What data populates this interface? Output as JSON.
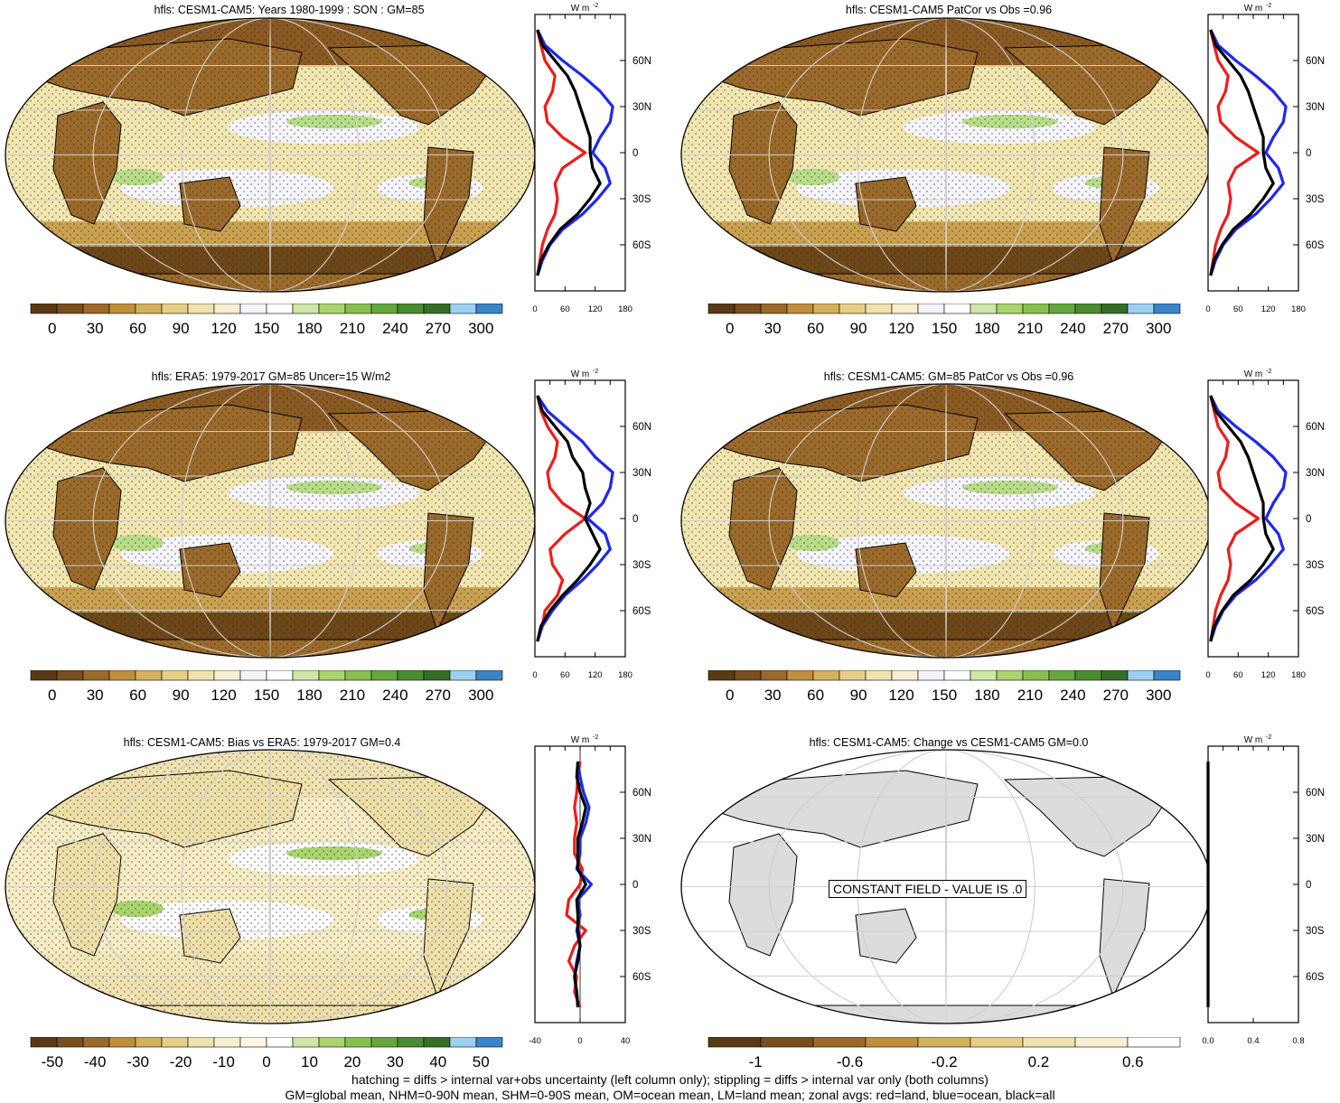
{
  "footer": {
    "line1": "hatching = diffs > internal var+obs uncertainty (left column only); stippling = diffs > internal var only (both columns)",
    "line2": "GM=global mean, NHM=0-90N mean, SHM=0-90S mean, OM=ocean mean, LM=land mean; zonal avgs: red=land, blue=ocean, black=all"
  },
  "zonal_unit": "W m",
  "zonal_unit_exp": "-2",
  "lat_ticks": [
    "60N",
    "30N",
    "0",
    "30S",
    "60S"
  ],
  "colors": {
    "land": "#ee1c1c",
    "ocean": "#1f28ee",
    "all": "#000000",
    "map_ocean_base": "#f2e6b0",
    "map_land_base": "#8a5a22",
    "grid": "#cfcfcf",
    "constant_land": "#dcdcdc"
  },
  "colorbars": {
    "abs": {
      "labels": [
        "0",
        "30",
        "60",
        "90",
        "120",
        "150",
        "180",
        "210",
        "240",
        "270",
        "300"
      ],
      "colors": [
        "#5a3a15",
        "#7a4e1e",
        "#9b6a2a",
        "#c08f3c",
        "#d4b15c",
        "#e6cf85",
        "#f0e2ad",
        "#f7efd0",
        "#f4f4fa",
        "#ffffff",
        "#cfe6a6",
        "#a9d46e",
        "#86c14f",
        "#64a83c",
        "#4a8c30",
        "#356f26",
        "#9cd0f0",
        "#3a85c8"
      ]
    },
    "bias": {
      "labels": [
        "-50",
        "-40",
        "-30",
        "-20",
        "-10",
        "0",
        "10",
        "20",
        "30",
        "40",
        "50"
      ],
      "colors": [
        "#5a3a15",
        "#7a4e1e",
        "#9b6a2a",
        "#c08f3c",
        "#d4b15c",
        "#e6cf85",
        "#f0e2ad",
        "#f7efd0",
        "#fbf7e4",
        "#ffffff",
        "#cfe6a6",
        "#a9d46e",
        "#86c14f",
        "#64a83c",
        "#4a8c30",
        "#356f26",
        "#9cd0f0",
        "#3a85c8"
      ]
    },
    "change": {
      "labels": [
        "-1",
        "-0.6",
        "-0.2",
        "0.2",
        "0.6"
      ],
      "colors": [
        "#5a3a15",
        "#7a4e1e",
        "#9b6a2a",
        "#c08f3c",
        "#d4b15c",
        "#e6cf85",
        "#f0e2ad",
        "#f7efd0",
        "#ffffff"
      ]
    }
  },
  "panels": [
    {
      "title": "hfls: CESM1-CAM5: Years 1980-1999 : SON : GM=85",
      "zonal_xticks": [
        "0",
        "60",
        "120",
        "180"
      ],
      "colorbar": "abs"
    },
    {
      "title": "hfls: CESM1-CAM5 PatCor vs Obs =0.96",
      "zonal_xticks": [
        "0",
        "60",
        "120",
        "180"
      ],
      "colorbar": "abs"
    },
    {
      "title": "hfls: ERA5: 1979-2017 GM=85 Uncer=15 W/m2",
      "zonal_xticks": [
        "0",
        "60",
        "120",
        "180"
      ],
      "colorbar": "abs"
    },
    {
      "title": "hfls: CESM1-CAM5: GM=85 PatCor vs Obs =0.96",
      "zonal_xticks": [
        "0",
        "60",
        "120",
        "180"
      ],
      "colorbar": "abs"
    },
    {
      "title": "hfls: CESM1-CAM5: Bias vs ERA5: 1979-2017  GM=0.4",
      "zonal_xticks": [
        "-40",
        "0",
        "40"
      ],
      "colorbar": "bias"
    },
    {
      "title": "hfls: CESM1-CAM5: Change vs CESM1-CAM5 GM=0.0",
      "zonal_xticks": [
        "0.0",
        "0.4",
        "0.8"
      ],
      "colorbar": "change",
      "constant_label": "CONSTANT FIELD - VALUE IS .0"
    }
  ],
  "chart_data": [
    {
      "type": "line",
      "title": "hfls: CESM1-CAM5: Years 1980-1999 : SON : GM=85",
      "x_axis": "latitude",
      "xlim": [
        -90,
        90
      ],
      "ylim": [
        0,
        180
      ],
      "x": [
        -80,
        -70,
        -60,
        -50,
        -40,
        -30,
        -20,
        -10,
        0,
        10,
        20,
        30,
        40,
        50,
        60,
        70,
        80
      ],
      "series": [
        {
          "name": "land",
          "values": [
            5,
            10,
            15,
            25,
            40,
            45,
            40,
            55,
            100,
            55,
            25,
            20,
            35,
            40,
            20,
            12,
            5
          ]
        },
        {
          "name": "ocean",
          "values": [
            5,
            15,
            30,
            55,
            95,
            125,
            150,
            140,
            115,
            130,
            150,
            155,
            130,
            95,
            55,
            20,
            5
          ]
        },
        {
          "name": "all",
          "values": [
            5,
            12,
            28,
            50,
            85,
            110,
            130,
            115,
            110,
            110,
            100,
            90,
            80,
            65,
            40,
            15,
            5
          ]
        }
      ]
    },
    {
      "type": "line",
      "title": "hfls: CESM1-CAM5 PatCor vs Obs =0.96",
      "x_axis": "latitude",
      "xlim": [
        -90,
        90
      ],
      "ylim": [
        0,
        180
      ],
      "x": [
        -80,
        -70,
        -60,
        -50,
        -40,
        -30,
        -20,
        -10,
        0,
        10,
        20,
        30,
        40,
        50,
        60,
        70,
        80
      ],
      "series": [
        {
          "name": "land",
          "values": [
            5,
            10,
            15,
            25,
            40,
            45,
            40,
            55,
            100,
            55,
            25,
            20,
            35,
            40,
            20,
            12,
            5
          ]
        },
        {
          "name": "ocean",
          "values": [
            5,
            15,
            30,
            55,
            95,
            125,
            150,
            140,
            115,
            130,
            150,
            155,
            130,
            95,
            55,
            20,
            5
          ]
        },
        {
          "name": "all",
          "values": [
            5,
            12,
            28,
            50,
            85,
            110,
            130,
            115,
            110,
            110,
            100,
            90,
            80,
            65,
            40,
            15,
            5
          ]
        }
      ]
    },
    {
      "type": "line",
      "title": "hfls: ERA5: 1979-2017 GM=85 Uncer=15 W/m2",
      "x_axis": "latitude",
      "xlim": [
        -90,
        90
      ],
      "ylim": [
        0,
        180
      ],
      "x": [
        -80,
        -70,
        -60,
        -50,
        -40,
        -30,
        -20,
        -10,
        0,
        10,
        20,
        30,
        40,
        50,
        60,
        70,
        80
      ],
      "series": [
        {
          "name": "land",
          "values": [
            5,
            15,
            20,
            45,
            55,
            35,
            30,
            60,
            100,
            55,
            30,
            25,
            40,
            45,
            25,
            12,
            5
          ]
        },
        {
          "name": "ocean",
          "values": [
            5,
            15,
            35,
            60,
            95,
            125,
            150,
            140,
            105,
            135,
            150,
            155,
            120,
            95,
            60,
            25,
            5
          ]
        },
        {
          "name": "all",
          "values": [
            5,
            12,
            30,
            55,
            85,
            110,
            130,
            115,
            100,
            110,
            100,
            95,
            75,
            65,
            40,
            15,
            5
          ]
        }
      ]
    },
    {
      "type": "line",
      "title": "hfls: CESM1-CAM5: GM=85 PatCor vs Obs =0.96",
      "x_axis": "latitude",
      "xlim": [
        -90,
        90
      ],
      "ylim": [
        0,
        180
      ],
      "x": [
        -80,
        -70,
        -60,
        -50,
        -40,
        -30,
        -20,
        -10,
        0,
        10,
        20,
        30,
        40,
        50,
        60,
        70,
        80
      ],
      "series": [
        {
          "name": "land",
          "values": [
            5,
            10,
            15,
            25,
            40,
            45,
            40,
            55,
            100,
            55,
            25,
            20,
            35,
            40,
            20,
            12,
            5
          ]
        },
        {
          "name": "ocean",
          "values": [
            5,
            15,
            30,
            55,
            95,
            125,
            150,
            140,
            115,
            130,
            150,
            155,
            130,
            95,
            55,
            20,
            5
          ]
        },
        {
          "name": "all",
          "values": [
            5,
            12,
            28,
            50,
            85,
            110,
            130,
            115,
            110,
            110,
            100,
            90,
            80,
            65,
            40,
            15,
            5
          ]
        }
      ]
    },
    {
      "type": "line",
      "title": "hfls: CESM1-CAM5: Bias vs ERA5: 1979-2017  GM=0.4",
      "x_axis": "latitude",
      "xlim": [
        -90,
        90
      ],
      "ylim": [
        -40,
        40
      ],
      "x": [
        -80,
        -70,
        -60,
        -50,
        -40,
        -30,
        -20,
        -10,
        0,
        10,
        20,
        30,
        40,
        50,
        60,
        70,
        80
      ],
      "series": [
        {
          "name": "land",
          "values": [
            0,
            -5,
            -3,
            -10,
            -5,
            5,
            -12,
            -10,
            0,
            2,
            -5,
            -5,
            -3,
            -5,
            -3,
            -2,
            0
          ]
        },
        {
          "name": "ocean",
          "values": [
            -2,
            -3,
            -5,
            -3,
            0,
            -3,
            0,
            -2,
            10,
            -3,
            0,
            0,
            5,
            8,
            3,
            0,
            -2
          ]
        },
        {
          "name": "all",
          "values": [
            -2,
            -3,
            -5,
            -2,
            0,
            -2,
            -2,
            -3,
            5,
            -2,
            -2,
            -2,
            2,
            5,
            0,
            -3,
            -2
          ]
        }
      ]
    },
    {
      "type": "line",
      "title": "hfls: CESM1-CAM5: Change vs CESM1-CAM5 GM=0.0",
      "x_axis": "latitude",
      "xlim": [
        -90,
        90
      ],
      "ylim": [
        0,
        1
      ],
      "x": [
        -80,
        80
      ],
      "series": [
        {
          "name": "all",
          "values": [
            0,
            0
          ]
        }
      ]
    }
  ]
}
